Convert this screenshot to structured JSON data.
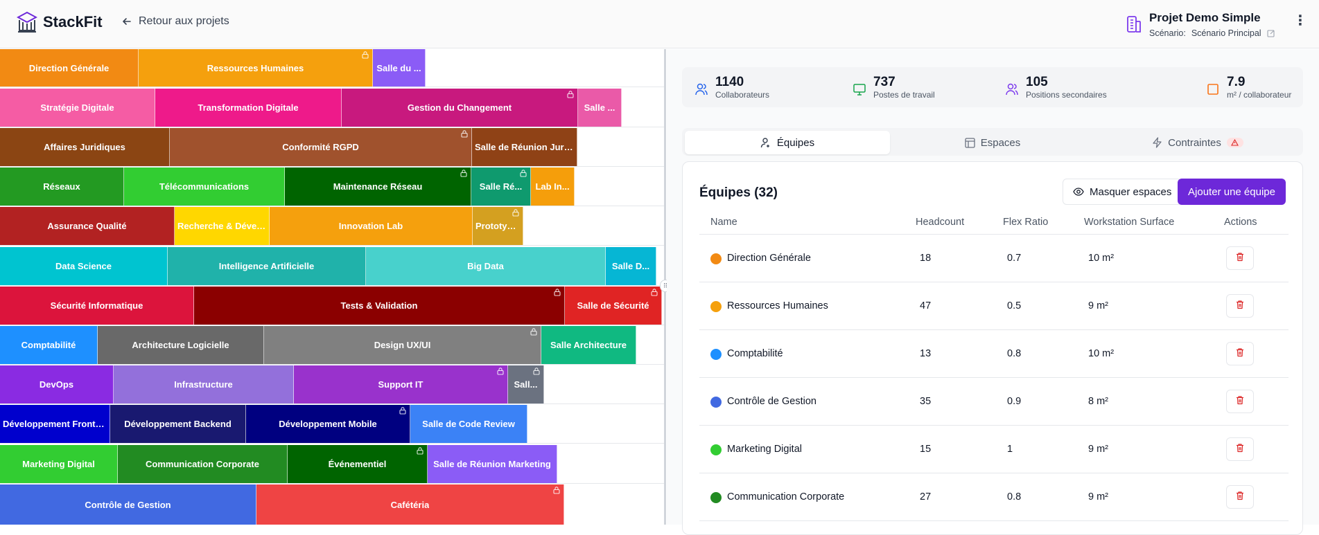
{
  "header": {
    "app_name": "StackFit",
    "back_label": "Retour aux projets",
    "project_title": "Projet Demo Simple",
    "scenario_label": "Scénario:",
    "scenario_value": "Scénario Principal"
  },
  "treemap": {
    "rows": [
      [
        {
          "label": "Direction Générale",
          "color": "#f28a13",
          "locked": false
        },
        {
          "label": "Ressources Humaines",
          "color": "#f5a00d",
          "locked": true
        },
        {
          "label": "Salle du ...",
          "color": "#8b5cf6",
          "locked": false
        }
      ],
      [
        {
          "label": "Stratégie Digitale",
          "color": "#f55ca4",
          "locked": false
        },
        {
          "label": "Transformation Digitale",
          "color": "#ee1a8a",
          "locked": false
        },
        {
          "label": "Gestion du Changement",
          "color": "#c8197e",
          "locked": true
        },
        {
          "label": "Salle ...",
          "color": "#ea5aa8",
          "locked": false
        }
      ],
      [
        {
          "label": "Affaires Juridiques",
          "color": "#8b4513",
          "locked": false
        },
        {
          "label": "Conformité RGPD",
          "color": "#a0522d",
          "locked": true
        },
        {
          "label": "Salle de Réunion Juri...",
          "color": "#8f4216",
          "locked": false
        }
      ],
      [
        {
          "label": "Réseaux",
          "color": "#239a22",
          "locked": false
        },
        {
          "label": "Télécommunications",
          "color": "#32cd32",
          "locked": false
        },
        {
          "label": "Maintenance Réseau",
          "color": "#006400",
          "locked": true
        },
        {
          "label": "Salle Ré...",
          "color": "#0f9a6e",
          "locked": true
        },
        {
          "label": "Lab In...",
          "color": "#f59e0b",
          "locked": false
        }
      ],
      [
        {
          "label": "Assurance Qualité",
          "color": "#b22222",
          "locked": false
        },
        {
          "label": "Recherche & Dével...",
          "color": "#ffd700",
          "locked": false
        },
        {
          "label": "Innovation Lab",
          "color": "#f5a00d",
          "locked": false
        },
        {
          "label": "Prototyp...",
          "color": "#d4a020",
          "locked": true
        }
      ],
      [
        {
          "label": "Data Science",
          "color": "#00c4d0",
          "locked": false
        },
        {
          "label": "Intelligence Artificielle",
          "color": "#20b2aa",
          "locked": false
        },
        {
          "label": "Big Data",
          "color": "#48d1cc",
          "locked": false
        },
        {
          "label": "Salle D...",
          "color": "#06b6d4",
          "locked": false
        }
      ],
      [
        {
          "label": "Sécurité Informatique",
          "color": "#dc143c",
          "locked": false
        },
        {
          "label": "Tests & Validation",
          "color": "#8b0000",
          "locked": true
        },
        {
          "label": "Salle de Sécurité",
          "color": "#e02424",
          "locked": true
        }
      ],
      [
        {
          "label": "Comptabilité",
          "color": "#1e90ff",
          "locked": false
        },
        {
          "label": "Architecture Logicielle",
          "color": "#696969",
          "locked": false
        },
        {
          "label": "Design UX/UI",
          "color": "#808080",
          "locked": true
        },
        {
          "label": "Salle Architecture",
          "color": "#10b981",
          "locked": false
        }
      ],
      [
        {
          "label": "DevOps",
          "color": "#8a2be2",
          "locked": false
        },
        {
          "label": "Infrastructure",
          "color": "#9370db",
          "locked": false
        },
        {
          "label": "Support IT",
          "color": "#9932cc",
          "locked": true
        },
        {
          "label": "Sall...",
          "color": "#6b7280",
          "locked": true
        }
      ],
      [
        {
          "label": "Développement Frontend",
          "color": "#0000cd",
          "locked": false
        },
        {
          "label": "Développement Backend",
          "color": "#191970",
          "locked": false
        },
        {
          "label": "Développement Mobile",
          "color": "#000080",
          "locked": true
        },
        {
          "label": "Salle de Code Review",
          "color": "#3b82f6",
          "locked": false
        }
      ],
      [
        {
          "label": "Marketing Digital",
          "color": "#32cd32",
          "locked": false
        },
        {
          "label": "Communication Corporate",
          "color": "#228b22",
          "locked": false
        },
        {
          "label": "Événementiel",
          "color": "#006400",
          "locked": true
        },
        {
          "label": "Salle de Réunion Marketing",
          "color": "#8b5cf6",
          "locked": false
        }
      ],
      [
        {
          "label": "Contrôle de Gestion",
          "color": "#4169e1",
          "locked": false
        },
        {
          "label": "Cafétéria",
          "color": "#ef4444",
          "locked": true
        }
      ]
    ]
  },
  "stats": [
    {
      "value": "1140",
      "label": "Collaborateurs",
      "icon": "users-icon",
      "color": "#2563eb"
    },
    {
      "value": "737",
      "label": "Postes de travail",
      "icon": "monitor-icon",
      "color": "#16a34a"
    },
    {
      "value": "105",
      "label": "Positions secondaires",
      "icon": "users-icon",
      "color": "#7c3aed"
    },
    {
      "value": "7.9",
      "label": "m² / collaborateur",
      "icon": "square-icon",
      "color": "#f97316"
    }
  ],
  "tabs": [
    {
      "label": "Équipes",
      "icon": "user-icon"
    },
    {
      "label": "Espaces",
      "icon": "layout-icon"
    },
    {
      "label": "Contraintes",
      "icon": "zap-icon"
    }
  ],
  "teams": {
    "title": "Équipes (32)",
    "hide_spaces_label": "Masquer espaces",
    "add_team_label": "Ajouter une équipe",
    "columns": [
      "Name",
      "Headcount",
      "Flex Ratio",
      "Workstation Surface",
      "Actions"
    ],
    "rows": [
      {
        "name": "Direction Générale",
        "headcount": "18",
        "flex": "0.7",
        "surface": "10 m²",
        "color": "#f28a13"
      },
      {
        "name": "Ressources Humaines",
        "headcount": "47",
        "flex": "0.5",
        "surface": "9 m²",
        "color": "#f5a00d"
      },
      {
        "name": "Comptabilité",
        "headcount": "13",
        "flex": "0.8",
        "surface": "10 m²",
        "color": "#1e90ff"
      },
      {
        "name": "Contrôle de Gestion",
        "headcount": "35",
        "flex": "0.9",
        "surface": "8 m²",
        "color": "#4169e1"
      },
      {
        "name": "Marketing Digital",
        "headcount": "15",
        "flex": "1",
        "surface": "9 m²",
        "color": "#32cd32"
      },
      {
        "name": "Communication Corporate",
        "headcount": "27",
        "flex": "0.8",
        "surface": "9 m²",
        "color": "#228b22"
      }
    ]
  }
}
